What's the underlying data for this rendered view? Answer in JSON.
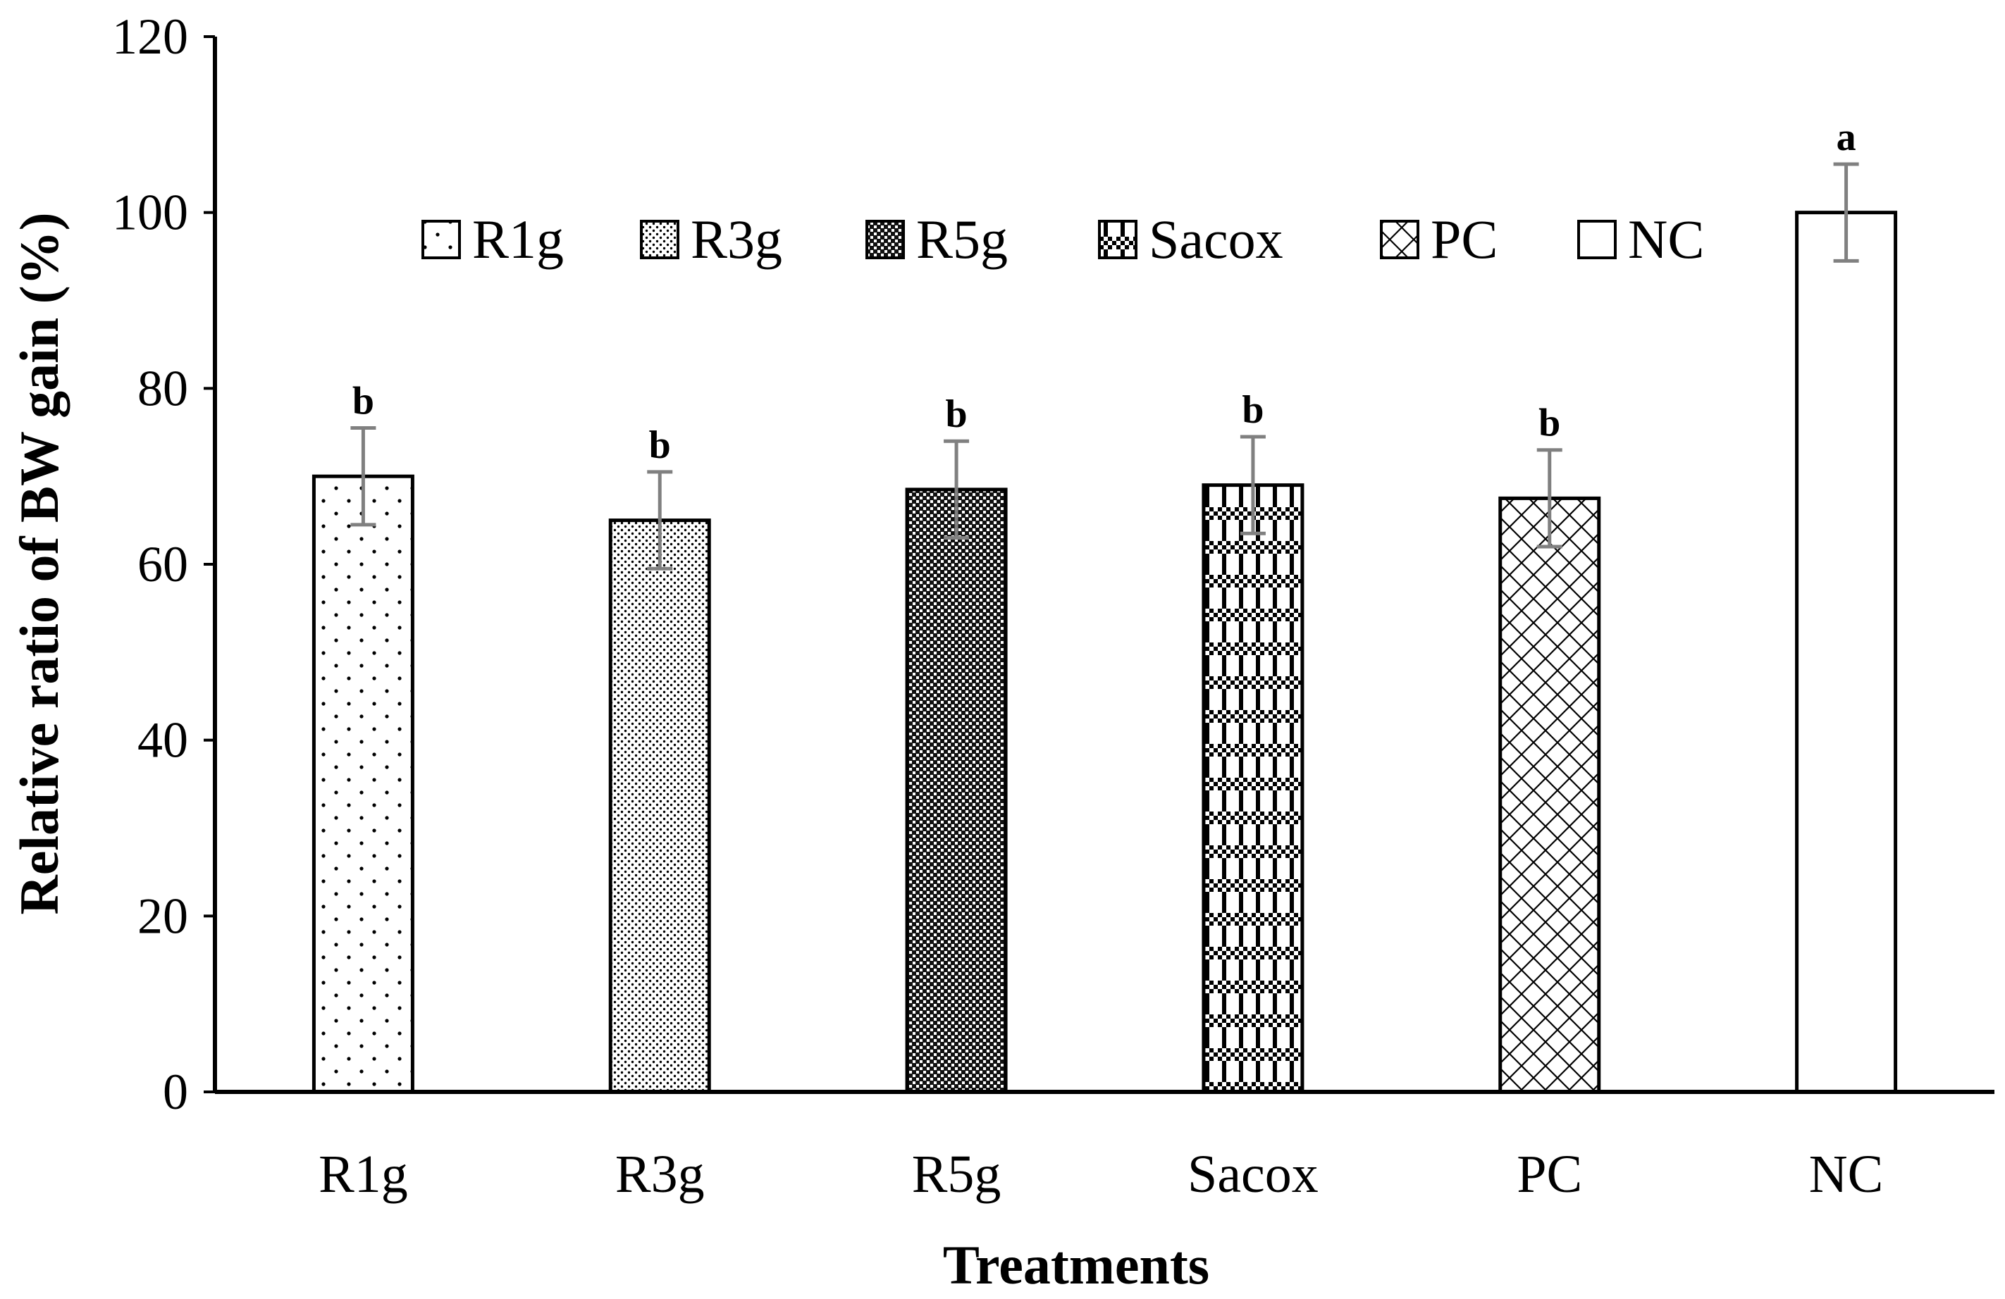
{
  "chart_data": {
    "type": "bar",
    "title": "",
    "xlabel": "Treatments",
    "ylabel": "Relative ratio of BW gain (%)",
    "ylim": [
      0,
      120
    ],
    "yticks": [
      0,
      20,
      40,
      60,
      80,
      100,
      120
    ],
    "categories": [
      "R1g",
      "R3g",
      "R5g",
      "Sacox",
      "PC",
      "NC"
    ],
    "values": [
      70,
      65,
      68.5,
      69,
      67.5,
      100
    ],
    "errors": [
      5.5,
      5.5,
      5.5,
      5.5,
      5.5,
      5.5
    ],
    "significance": [
      "b",
      "b",
      "b",
      "b",
      "b",
      "a"
    ],
    "patterns": [
      "sparse-dots",
      "dense-dots",
      "dark-checker",
      "checker-bars",
      "diamond-lattice",
      "none"
    ],
    "legend": {
      "position": "top-center",
      "entries": [
        "R1g",
        "R3g",
        "R5g",
        "Sacox",
        "PC",
        "NC"
      ]
    },
    "colors": {
      "bar_stroke": "#000000",
      "error_bar": "#808080",
      "axis": "#000000",
      "background": "#ffffff"
    }
  }
}
